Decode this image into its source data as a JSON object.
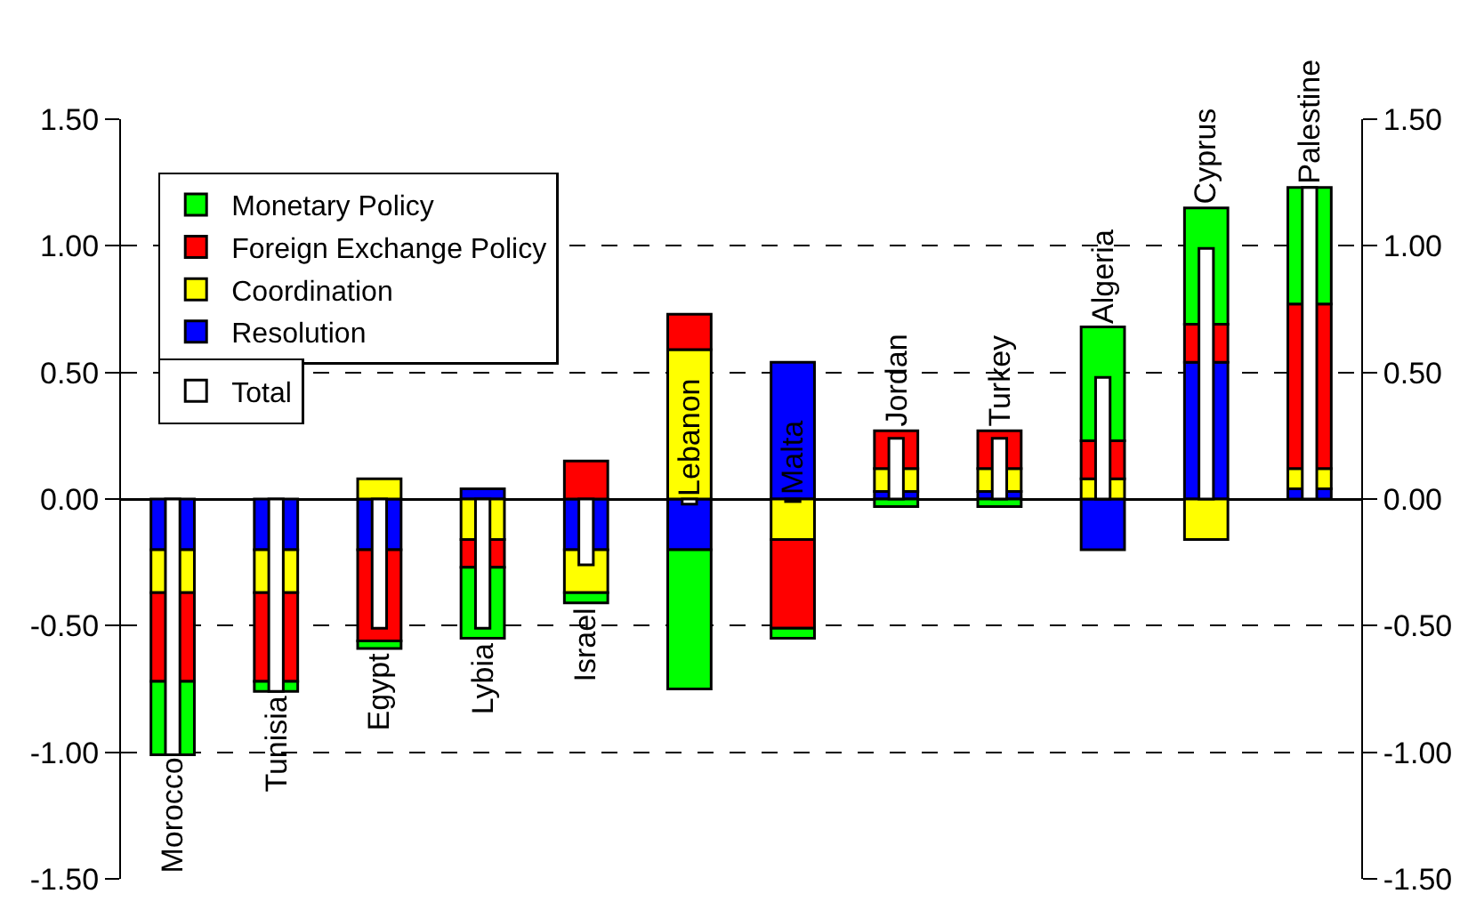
{
  "chart_data": [
    {
      "type": "bar",
      "stacked": true,
      "categories": [
        "Morocco",
        "Tunisia",
        "Egypt",
        "Lybia",
        "Israel",
        "Lebanon",
        "Malta",
        "Jordan",
        "Turkey",
        "Algeria",
        "Cyprus",
        "Palestine"
      ],
      "series": [
        {
          "name": "Resolution",
          "color": "#0000ff",
          "values": [
            -0.2,
            -0.2,
            -0.2,
            0.04,
            -0.2,
            -0.2,
            0.54,
            0.03,
            0.03,
            -0.2,
            0.54,
            0.04
          ]
        },
        {
          "name": "Coordination",
          "color": "#ffff00",
          "values": [
            -0.17,
            -0.17,
            0.08,
            -0.16,
            -0.17,
            0.59,
            -0.16,
            0.09,
            0.09,
            0.08,
            -0.16,
            0.08
          ]
        },
        {
          "name": "Foreign Exchange Policy",
          "color": "#ff0000",
          "values": [
            -0.35,
            -0.35,
            -0.36,
            -0.11,
            0.15,
            0.14,
            -0.35,
            0.15,
            0.15,
            0.15,
            0.15,
            0.65
          ]
        },
        {
          "name": "Monetary Policy",
          "color": "#00ff00",
          "values": [
            -0.29,
            -0.04,
            -0.03,
            -0.28,
            -0.04,
            -0.55,
            -0.04,
            -0.03,
            -0.03,
            0.45,
            0.46,
            0.46
          ]
        }
      ],
      "ylim": [
        -1.5,
        1.5
      ],
      "yticks": [
        {
          "value": -1.5,
          "label": "-1.50"
        },
        {
          "value": -1,
          "label": "-1.00"
        },
        {
          "value": -0.5,
          "label": "-0.50"
        },
        {
          "value": 0,
          "label": "0.00"
        },
        {
          "value": 0.5,
          "label": "0.50"
        },
        {
          "value": 1,
          "label": "1.00"
        },
        {
          "value": 1.5,
          "label": "1.50"
        }
      ],
      "y2lim": [
        -1.5,
        1.5
      ],
      "y2ticks": [
        {
          "value": -1.5,
          "label": "-1.50"
        },
        {
          "value": -1,
          "label": "-1.00"
        },
        {
          "value": -0.5,
          "label": "-0.50"
        },
        {
          "value": 0,
          "label": "0.00"
        },
        {
          "value": 0.5,
          "label": "0.50"
        },
        {
          "value": 1,
          "label": "1.00"
        },
        {
          "value": 1.5,
          "label": "1.50"
        }
      ],
      "grid": "y",
      "legend": "top left"
    },
    {
      "type": "bar",
      "categories": [
        null,
        null,
        null,
        null,
        null,
        null,
        null,
        null,
        null,
        null,
        null,
        null
      ],
      "series": [
        {
          "name": "Total",
          "color": "#ffffff",
          "values": [
            -1.01,
            -0.76,
            -0.51,
            -0.51,
            -0.26,
            -0.02,
            -0.01,
            0.24,
            0.24,
            0.48,
            0.99,
            1.23
          ]
        }
      ],
      "ylim": [
        -1.5,
        1.5
      ],
      "legend": "top left"
    }
  ]
}
